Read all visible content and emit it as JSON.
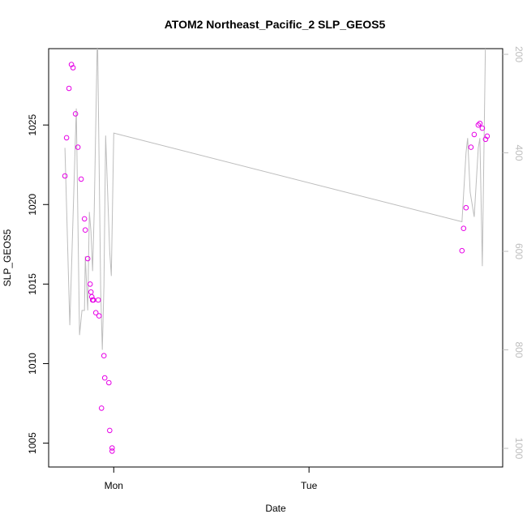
{
  "chart_data": {
    "type": "scatter",
    "title": "ATOM2 Northeast_Pacific_2 SLP_GEOS5",
    "xlabel": "Date",
    "ylabel": "SLP_GEOS5",
    "x_ticks": [
      {
        "label": "Mon",
        "value": 0.0
      },
      {
        "label": "Tue",
        "value": 24.0
      }
    ],
    "xlim": [
      -8.0,
      47.8
    ],
    "ylim": [
      1003.5,
      1029.8
    ],
    "y_ticks": [
      1005,
      1010,
      1015,
      1020,
      1025
    ],
    "right_axis": {
      "range": [
        200,
        1000
      ],
      "ticks": [
        200,
        400,
        600,
        800,
        1000
      ],
      "color": "#bdbdbd",
      "inverted": true
    },
    "grid": false,
    "series": [
      {
        "kind": "points",
        "color": "#e600e6",
        "points": [
          [
            -6.0,
            1021.8
          ],
          [
            -5.8,
            1024.2
          ],
          [
            -5.5,
            1027.3
          ],
          [
            -5.2,
            1028.8
          ],
          [
            -5.0,
            1028.6
          ],
          [
            -4.7,
            1025.7
          ],
          [
            -4.4,
            1023.6
          ],
          [
            -4.0,
            1021.6
          ],
          [
            -3.6,
            1019.1
          ],
          [
            -3.5,
            1018.4
          ],
          [
            -3.2,
            1016.6
          ],
          [
            -2.9,
            1015.0
          ],
          [
            -2.8,
            1014.5
          ],
          [
            -2.7,
            1014.2
          ],
          [
            -2.6,
            1014.0
          ],
          [
            -2.5,
            1014.0
          ],
          [
            -2.2,
            1013.2
          ],
          [
            -1.9,
            1014.0
          ],
          [
            -1.8,
            1013.0
          ],
          [
            -1.5,
            1007.2
          ],
          [
            -1.2,
            1010.5
          ],
          [
            -1.1,
            1009.1
          ],
          [
            -0.6,
            1008.8
          ],
          [
            -0.5,
            1005.8
          ],
          [
            -0.2,
            1004.5
          ],
          [
            -0.2,
            1004.7
          ],
          [
            42.8,
            1017.1
          ],
          [
            43.0,
            1018.5
          ],
          [
            43.3,
            1019.8
          ],
          [
            43.9,
            1023.6
          ],
          [
            44.3,
            1024.4
          ],
          [
            44.8,
            1025.0
          ],
          [
            45.0,
            1025.1
          ],
          [
            45.3,
            1024.8
          ],
          [
            45.7,
            1024.1
          ],
          [
            45.9,
            1024.3
          ]
        ]
      },
      {
        "kind": "line",
        "axis": "right",
        "color": "#bdbdbd",
        "points": [
          [
            -6.0,
            390
          ],
          [
            -5.4,
            750
          ],
          [
            -4.6,
            310
          ],
          [
            -4.2,
            770
          ],
          [
            -3.9,
            720
          ],
          [
            -3.6,
            720
          ],
          [
            -3.5,
            610
          ],
          [
            -3.2,
            720
          ],
          [
            -3.0,
            520
          ],
          [
            -2.8,
            560
          ],
          [
            -2.6,
            640
          ],
          [
            -2.4,
            520
          ],
          [
            -2.0,
            150
          ],
          [
            -1.6,
            680
          ],
          [
            -1.4,
            800
          ],
          [
            -1.2,
            670
          ],
          [
            -1.0,
            365
          ],
          [
            -0.5,
            600
          ],
          [
            -0.3,
            650
          ],
          [
            0.0,
            360
          ],
          [
            42.8,
            540
          ],
          [
            43.3,
            400
          ],
          [
            43.5,
            370
          ],
          [
            43.8,
            480
          ],
          [
            44.3,
            530
          ],
          [
            44.8,
            390
          ],
          [
            45.0,
            370
          ],
          [
            45.3,
            630
          ],
          [
            45.7,
            160
          ]
        ]
      }
    ]
  }
}
